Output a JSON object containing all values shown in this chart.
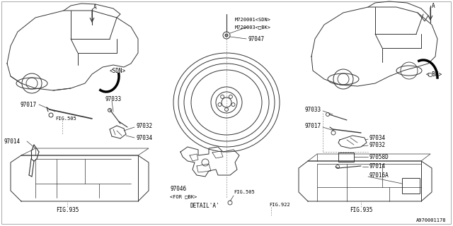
{
  "bg_color": "#ffffff",
  "lc": "#333333",
  "tc": "#000000",
  "fs": 5.5,
  "lw": 0.7,
  "labels": {
    "SDN": "<SDN>",
    "DBK": "<□BK>",
    "M720001": "M720001<SDN>",
    "M720003": "M720003<□BK>",
    "97047": "97047",
    "97033": "97033",
    "97032": "97032",
    "97034": "97034",
    "97017": "97017",
    "97014": "97014",
    "97046": "97046",
    "97058D": "97058D",
    "97016A": "97016A",
    "FIG505": "FIG.505",
    "FIG935": "FIG.935",
    "FIG922": "FIG.922",
    "DETAIL_A": "DETAIL'A'",
    "FOR_DBK": "<FOR □BK>",
    "A970001178": "A970001178"
  }
}
